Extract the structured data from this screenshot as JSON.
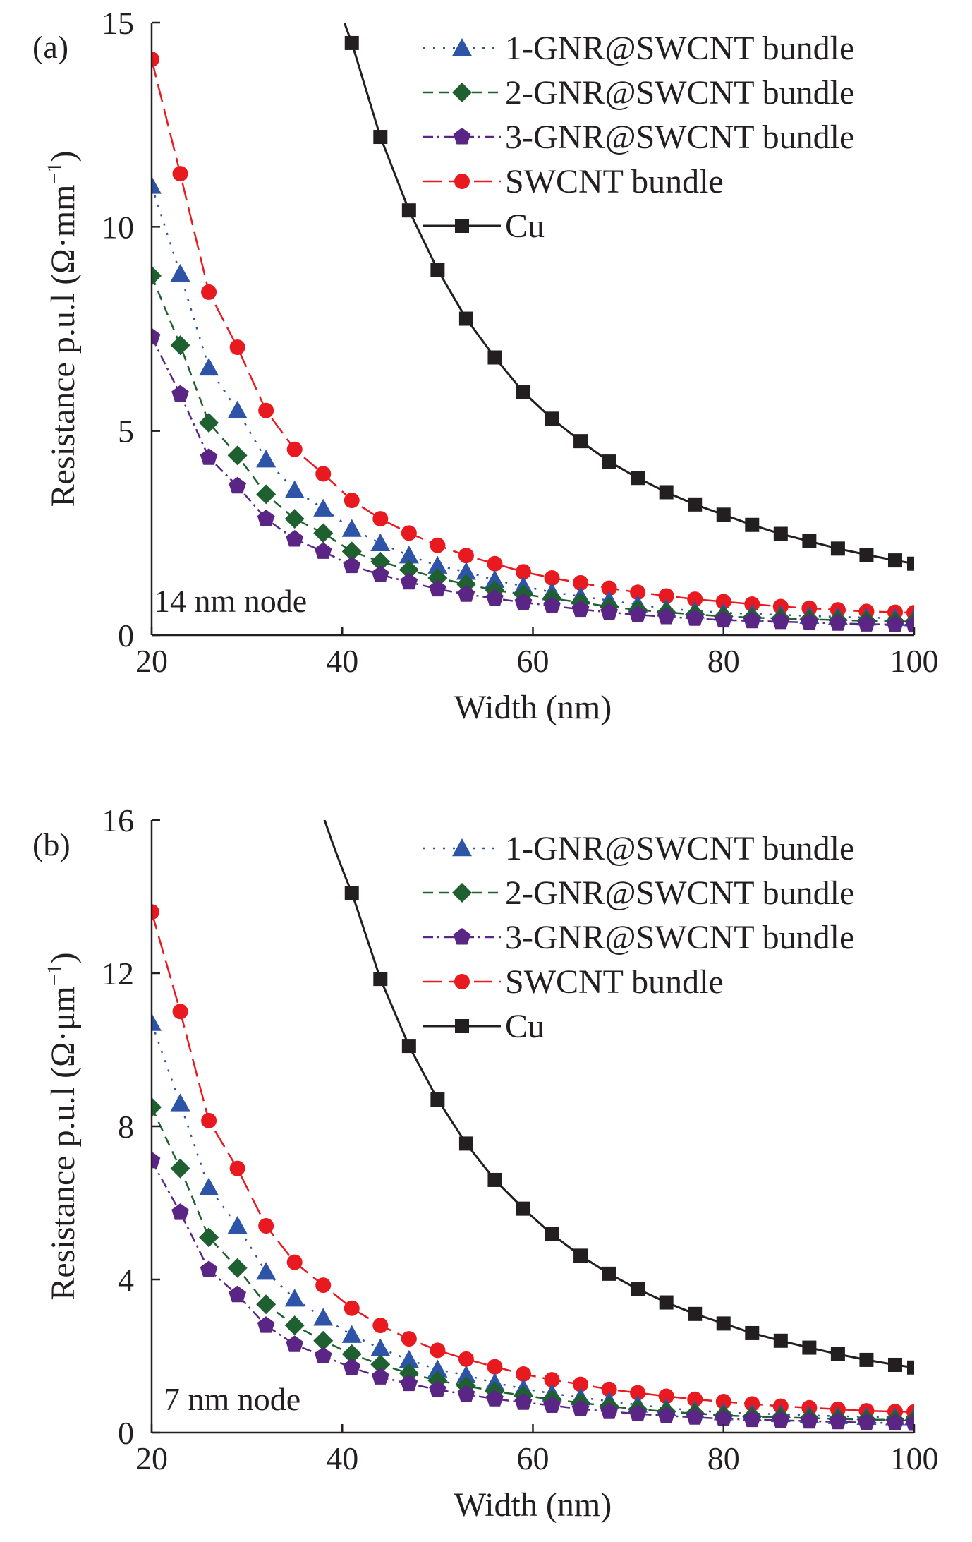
{
  "chart_data": [
    {
      "type": "line",
      "panel_label": "(a)",
      "annotation": "14 nm node",
      "xlabel": "Width (nm)",
      "ylabel": "Resistance p.u.l (Ω·mm⁻¹)",
      "ylabel_main": "Resistance p.u.l (Ω·mm",
      "ylabel_sup": "−1",
      "ylabel_close": ")",
      "xlim": [
        20,
        100
      ],
      "ylim": [
        0,
        15
      ],
      "xticks": [
        20,
        40,
        60,
        80,
        100
      ],
      "yticks": [
        0,
        5,
        10,
        15
      ],
      "grid": false,
      "legend_position": "top-right",
      "x": [
        20,
        23,
        26,
        29,
        32,
        35,
        38,
        41,
        44,
        47,
        50,
        53,
        56,
        59,
        62,
        65,
        68,
        71,
        74,
        77,
        80,
        83,
        86,
        89,
        92,
        95,
        98,
        100
      ],
      "series": [
        {
          "name": "1-GNR@SWCNT bundle",
          "marker": "triangle",
          "color": "#2e54a8",
          "dash": "3,11",
          "values": [
            11.0,
            8.85,
            6.55,
            5.5,
            4.3,
            3.55,
            3.1,
            2.6,
            2.25,
            1.95,
            1.7,
            1.55,
            1.35,
            1.2,
            1.05,
            0.95,
            0.85,
            0.75,
            0.65,
            0.6,
            0.55,
            0.52,
            0.5,
            0.47,
            0.45,
            0.43,
            0.42,
            0.41
          ]
        },
        {
          "name": "2-GNR@SWCNT bundle",
          "marker": "diamond",
          "color": "#1f6030",
          "dash": "14,9",
          "values": [
            8.8,
            7.1,
            5.2,
            4.4,
            3.45,
            2.85,
            2.5,
            2.05,
            1.8,
            1.6,
            1.4,
            1.25,
            1.1,
            1.0,
            0.9,
            0.8,
            0.7,
            0.62,
            0.56,
            0.51,
            0.46,
            0.43,
            0.41,
            0.39,
            0.37,
            0.35,
            0.34,
            0.33
          ]
        },
        {
          "name": "3-GNR@SWCNT bundle",
          "marker": "pentagon",
          "color": "#5b2585",
          "dash": "14,6,3,6",
          "values": [
            7.3,
            5.9,
            4.35,
            3.65,
            2.85,
            2.35,
            2.05,
            1.7,
            1.48,
            1.3,
            1.13,
            1.0,
            0.9,
            0.8,
            0.72,
            0.63,
            0.56,
            0.5,
            0.45,
            0.41,
            0.37,
            0.35,
            0.33,
            0.31,
            0.29,
            0.27,
            0.26,
            0.25
          ]
        },
        {
          "name": "SWCNT bundle",
          "marker": "circle",
          "color": "#e8191f",
          "dash": "26,10",
          "values": [
            14.1,
            11.3,
            8.4,
            7.05,
            5.5,
            4.55,
            3.95,
            3.3,
            2.85,
            2.5,
            2.2,
            1.95,
            1.75,
            1.55,
            1.4,
            1.28,
            1.15,
            1.05,
            0.96,
            0.88,
            0.82,
            0.76,
            0.7,
            0.66,
            0.62,
            0.58,
            0.56,
            0.55
          ]
        },
        {
          "name": "Cu",
          "marker": "square",
          "color": "#231f20",
          "dash": "",
          "values": [
            null,
            null,
            null,
            null,
            null,
            null,
            null,
            14.5,
            12.2,
            10.4,
            8.95,
            7.75,
            6.8,
            5.95,
            5.3,
            4.75,
            4.25,
            3.85,
            3.5,
            3.2,
            2.95,
            2.7,
            2.48,
            2.3,
            2.12,
            1.97,
            1.83,
            1.75
          ]
        }
      ]
    },
    {
      "type": "line",
      "panel_label": "(b)",
      "annotation": "7 nm node",
      "xlabel": "Width (nm)",
      "ylabel": "Resistance p.u.l (Ω·μm⁻¹)",
      "ylabel_main": "Resistance p.u.l (Ω·μm",
      "ylabel_sup": "−1",
      "ylabel_close": ")",
      "xlim": [
        20,
        100
      ],
      "ylim": [
        0,
        16
      ],
      "xticks": [
        20,
        40,
        60,
        80,
        100
      ],
      "yticks": [
        0,
        4,
        8,
        12,
        16
      ],
      "grid": false,
      "legend_position": "top-right",
      "x": [
        20,
        23,
        26,
        29,
        32,
        35,
        38,
        41,
        44,
        47,
        50,
        53,
        56,
        59,
        62,
        65,
        68,
        71,
        74,
        77,
        80,
        83,
        86,
        89,
        92,
        95,
        98,
        100
      ],
      "series": [
        {
          "name": "1-GNR@SWCNT bundle",
          "marker": "triangle",
          "color": "#2e54a8",
          "dash": "3,11",
          "values": [
            10.7,
            8.6,
            6.4,
            5.4,
            4.2,
            3.5,
            3.0,
            2.55,
            2.2,
            1.9,
            1.65,
            1.5,
            1.3,
            1.15,
            1.02,
            0.92,
            0.82,
            0.73,
            0.64,
            0.58,
            0.53,
            0.5,
            0.48,
            0.45,
            0.43,
            0.41,
            0.4,
            0.4
          ]
        },
        {
          "name": "2-GNR@SWCNT bundle",
          "marker": "diamond",
          "color": "#1f6030",
          "dash": "14,9",
          "values": [
            8.5,
            6.9,
            5.1,
            4.3,
            3.35,
            2.8,
            2.4,
            2.05,
            1.78,
            1.55,
            1.36,
            1.22,
            1.08,
            0.97,
            0.87,
            0.78,
            0.69,
            0.61,
            0.55,
            0.5,
            0.45,
            0.42,
            0.4,
            0.38,
            0.36,
            0.34,
            0.33,
            0.32
          ]
        },
        {
          "name": "3-GNR@SWCNT bundle",
          "marker": "pentagon",
          "color": "#5b2585",
          "dash": "14,6,3,6",
          "values": [
            7.1,
            5.75,
            4.25,
            3.6,
            2.8,
            2.3,
            2.0,
            1.7,
            1.45,
            1.28,
            1.12,
            1.0,
            0.88,
            0.79,
            0.71,
            0.62,
            0.55,
            0.49,
            0.44,
            0.4,
            0.36,
            0.34,
            0.32,
            0.3,
            0.28,
            0.26,
            0.25,
            0.24
          ]
        },
        {
          "name": "SWCNT bundle",
          "marker": "circle",
          "color": "#e8191f",
          "dash": "26,10",
          "values": [
            13.6,
            11.0,
            8.15,
            6.9,
            5.4,
            4.45,
            3.85,
            3.25,
            2.8,
            2.45,
            2.15,
            1.92,
            1.72,
            1.53,
            1.38,
            1.26,
            1.13,
            1.04,
            0.95,
            0.87,
            0.81,
            0.75,
            0.69,
            0.65,
            0.61,
            0.57,
            0.55,
            0.54
          ]
        },
        {
          "name": "Cu",
          "marker": "square",
          "color": "#231f20",
          "dash": "",
          "values": [
            null,
            null,
            null,
            null,
            null,
            null,
            null,
            14.1,
            11.85,
            10.1,
            8.7,
            7.55,
            6.6,
            5.85,
            5.18,
            4.62,
            4.15,
            3.75,
            3.4,
            3.1,
            2.85,
            2.6,
            2.4,
            2.22,
            2.05,
            1.9,
            1.77,
            1.7
          ]
        }
      ]
    }
  ]
}
